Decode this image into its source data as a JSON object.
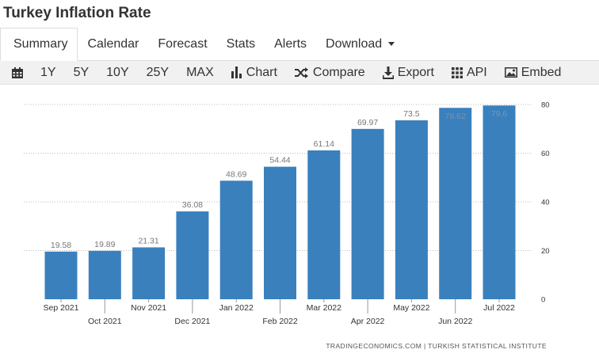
{
  "page": {
    "title": "Turkey Inflation Rate"
  },
  "tabs": [
    {
      "label": "Summary",
      "active": true
    },
    {
      "label": "Calendar",
      "active": false
    },
    {
      "label": "Forecast",
      "active": false
    },
    {
      "label": "Stats",
      "active": false
    },
    {
      "label": "Alerts",
      "active": false
    },
    {
      "label": "Download",
      "active": false
    }
  ],
  "toolbar": {
    "calendar_icon": "calendar-icon",
    "ranges": [
      "1Y",
      "5Y",
      "10Y",
      "25Y",
      "MAX"
    ],
    "chart_label": "Chart",
    "compare_label": "Compare",
    "export_label": "Export",
    "api_label": "API",
    "embed_label": "Embed"
  },
  "colors": {
    "bar": "#3a80bd",
    "grid": "#bbbbbb",
    "toolbar_bg": "#f1f1f1"
  },
  "chart_data": {
    "type": "bar",
    "categories": [
      "Sep 2021",
      "Oct 2021",
      "Nov 2021",
      "Dec 2021",
      "Jan 2022",
      "Feb 2022",
      "Mar 2022",
      "Apr 2022",
      "May 2022",
      "Jun 2022",
      "Jul 2022"
    ],
    "values": [
      19.58,
      19.89,
      21.31,
      36.08,
      48.69,
      54.44,
      61.14,
      69.97,
      73.5,
      78.62,
      79.6
    ],
    "value_labels": [
      "19.58",
      "19.89",
      "21.31",
      "36.08",
      "48.69",
      "54.44",
      "61.14",
      "69.97",
      "73.5",
      "78.62",
      "79.6"
    ],
    "y_ticks": [
      0,
      20,
      40,
      60,
      80
    ],
    "ylim": [
      0,
      80
    ],
    "y_axis_side": "right",
    "grid": true,
    "grid_style": "dotted",
    "title": "",
    "xlabel": "",
    "ylabel": "",
    "source": "TRADINGECONOMICS.COM  |  TURKISH STATISTICAL INSTITUTE"
  }
}
